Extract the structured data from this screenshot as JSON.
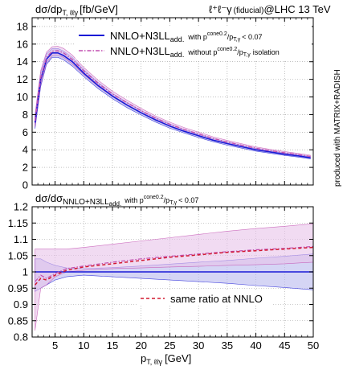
{
  "colors": {
    "nnlo_n3ll_iso": "#1a1ad6",
    "nnlo_n3ll_iso_band": "#b9b9ef",
    "nnlo_n3ll_noiso": "#c24fb0",
    "nnlo_n3ll_noiso_band": "#e7c3ea",
    "nnlo_ratio": "#d2182f",
    "grid": "#9a9a9a"
  },
  "header": {
    "ylabel_main": "dσ/dp",
    "ylabel_main_sub": "T, ℓℓγ",
    "ylabel_main_unit": "[fb/GeV]",
    "process": "ℓ⁺ℓ⁻γ",
    "process_note": "(fiducial)",
    "collider": "@LHC 13 TeV"
  },
  "watermark": "produced with MATRIX+RADISH",
  "legend": {
    "entry1_main": "NNLO+N3LL",
    "entry1_sub": "add.",
    "entry1_cut_pre": "with p",
    "entry1_cut_sup": "cone0.2",
    "entry1_cut_mid": "/p",
    "entry1_cut_sub": "T,γ",
    "entry1_cut_post": "< 0.07",
    "entry2_main": "NNLO+N3LL",
    "entry2_sub": "add.",
    "entry2_cut_pre": "without p",
    "entry2_cut_sup": "cone0.2",
    "entry2_cut_mid": "/p",
    "entry2_cut_sub": "T,γ",
    "entry2_cut_post": "isolation"
  },
  "ratio_header": {
    "text": "dσ/dσ",
    "sub": "NNLO+N3LL",
    "subsub": "add.",
    "cut_pre": "with p",
    "cut_sup": "cone0.2",
    "cut_mid": "/p",
    "cut_sub": "T,γ",
    "cut_post": "< 0.07"
  },
  "ratio_legend": "same ratio at NNLO",
  "xaxis": {
    "label": "p",
    "label_sub": "T, ℓℓγ",
    "label_unit": "[GeV]"
  },
  "chart_data": [
    {
      "type": "line",
      "title": "",
      "xlim": [
        1,
        50
      ],
      "ylim": [
        0,
        19
      ],
      "xticks": [
        5,
        10,
        15,
        20,
        25,
        30,
        35,
        40,
        45,
        50
      ],
      "yticks": [
        0,
        2,
        4,
        6,
        8,
        10,
        12,
        14,
        16,
        18
      ],
      "grid": true,
      "legend_position": "top-right",
      "x": [
        1.5,
        2.5,
        3.5,
        4.5,
        5.5,
        6.5,
        8,
        10,
        12.5,
        15,
        17.5,
        20,
        22.5,
        25,
        27.5,
        30,
        32.5,
        35,
        37.5,
        40,
        42.5,
        45,
        47.5,
        49.5
      ],
      "series": [
        {
          "name": "NNLO+N3LL add. with pT cone0.2/pT,γ < 0.07",
          "values": [
            7.1,
            12.0,
            14.3,
            15.0,
            15.0,
            14.7,
            14.0,
            12.7,
            11.3,
            10.1,
            9.1,
            8.2,
            7.4,
            6.7,
            6.1,
            5.6,
            5.1,
            4.7,
            4.35,
            4.0,
            3.75,
            3.5,
            3.3,
            3.1
          ],
          "band": [
            [
              6.4,
              11.2,
              13.7,
              14.5,
              14.5,
              14.2,
              13.5,
              12.3,
              10.95,
              9.8,
              8.8,
              7.95,
              7.15,
              6.45,
              5.9,
              5.4,
              4.92,
              4.52,
              4.18,
              3.85,
              3.6,
              3.36,
              3.16,
              2.97
            ],
            [
              7.8,
              12.8,
              14.9,
              15.5,
              15.5,
              15.2,
              14.5,
              13.1,
              11.65,
              10.4,
              9.4,
              8.45,
              7.65,
              6.95,
              6.3,
              5.8,
              5.28,
              4.88,
              4.52,
              4.15,
              3.9,
              3.64,
              3.44,
              3.23
            ]
          ]
        },
        {
          "name": "NNLO+N3LL add. without pT cone0.2/pT,γ isolation",
          "values": [
            7.3,
            12.2,
            14.5,
            15.2,
            15.25,
            15.0,
            14.25,
            12.95,
            11.55,
            10.35,
            9.35,
            8.45,
            7.6,
            6.9,
            6.3,
            5.8,
            5.3,
            4.88,
            4.52,
            4.17,
            3.9,
            3.65,
            3.44,
            3.24
          ],
          "band": [
            [
              6.6,
              11.4,
              13.9,
              14.7,
              14.75,
              14.5,
              13.75,
              12.55,
              11.2,
              10.05,
              9.05,
              8.2,
              7.35,
              6.67,
              6.08,
              5.6,
              5.12,
              4.7,
              4.35,
              4.02,
              3.75,
              3.5,
              3.3,
              3.1
            ],
            [
              8.0,
              13.0,
              15.1,
              15.7,
              15.75,
              15.5,
              14.75,
              13.35,
              11.9,
              10.65,
              9.65,
              8.7,
              7.85,
              7.13,
              6.52,
              6.0,
              5.48,
              5.06,
              4.69,
              4.32,
              4.05,
              3.8,
              3.58,
              3.38
            ]
          ]
        }
      ]
    },
    {
      "type": "line",
      "title": "",
      "xlim": [
        1,
        50
      ],
      "ylim": [
        0.8,
        1.2
      ],
      "xticks": [
        5,
        10,
        15,
        20,
        25,
        30,
        35,
        40,
        45,
        50
      ],
      "yticks": [
        0.8,
        0.85,
        0.9,
        0.95,
        1,
        1.05,
        1.1,
        1.15,
        1.2
      ],
      "grid": true,
      "legend_position": "bottom-center",
      "x": [
        1.5,
        2.5,
        3.5,
        5,
        7,
        10,
        15,
        20,
        25,
        30,
        35,
        40,
        45,
        50
      ],
      "series": [
        {
          "name": "NNLO+N3LL add. with pT cone0.2/pT,γ < 0.07",
          "values": [
            1,
            1,
            1,
            1,
            1,
            1,
            1,
            1,
            1,
            1,
            1,
            1,
            1,
            1
          ],
          "band": [
            [
              0.94,
              0.95,
              0.96,
              0.975,
              0.985,
              0.99,
              0.985,
              0.98,
              0.975,
              0.97,
              0.965,
              0.958,
              0.952,
              0.945
            ],
            [
              1.04,
              1.04,
              1.03,
              1.02,
              1.012,
              1.01,
              1.013,
              1.018,
              1.024,
              1.03,
              1.035,
              1.042,
              1.048,
              1.055
            ]
          ]
        },
        {
          "name": "NNLO+N3LL add. without pT cone0.2/pT,γ isolation",
          "values": [
            0.97,
            0.99,
            0.98,
            0.995,
            1.01,
            1.018,
            1.03,
            1.04,
            1.048,
            1.055,
            1.062,
            1.068,
            1.072,
            1.078
          ],
          "band": [
            [
              0.82,
              0.95,
              0.96,
              0.985,
              1.0,
              1.005,
              1.01,
              1.012,
              1.015,
              1.017,
              1.02,
              1.022,
              1.025,
              1.03
            ],
            [
              1.07,
              1.07,
              1.07,
              1.07,
              1.07,
              1.075,
              1.085,
              1.095,
              1.105,
              1.115,
              1.125,
              1.133,
              1.14,
              1.148
            ]
          ]
        },
        {
          "name": "same ratio at NNLO",
          "values": [
            0.96,
            0.98,
            0.975,
            0.99,
            1.005,
            1.015,
            1.025,
            1.035,
            1.045,
            1.052,
            1.06,
            1.065,
            1.07,
            1.075
          ]
        }
      ]
    }
  ]
}
